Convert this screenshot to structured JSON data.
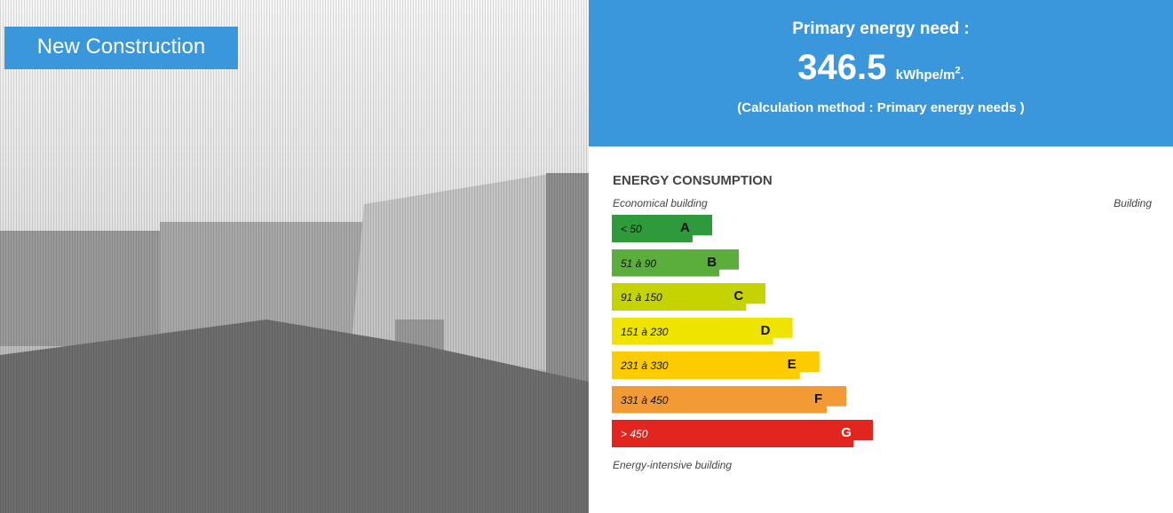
{
  "badge": "New Construction",
  "header": {
    "title": "Primary energy need :",
    "value": "346.5",
    "unit": "kWhpe/m",
    "unit_exponent": "2",
    "unit_end": ".",
    "method": "(Calculation method : Primary energy needs )"
  },
  "energy": {
    "title": "ENERGY CONSUMPTION",
    "top_left": "Economical building",
    "top_right": "Building",
    "bottom": "Energy-intensive building",
    "classes": [
      {
        "range": "< 50",
        "letter": "A",
        "color": "#2f9a3b"
      },
      {
        "range": "51 à 90",
        "letter": "B",
        "color": "#5bae3c"
      },
      {
        "range": "91 à 150",
        "letter": "C",
        "color": "#c5d300"
      },
      {
        "range": "151 à 230",
        "letter": "D",
        "color": "#efe400"
      },
      {
        "range": "231 à 330",
        "letter": "E",
        "color": "#fccb00"
      },
      {
        "range": "331 à 450",
        "letter": "F",
        "color": "#f29a36"
      },
      {
        "range": "> 450",
        "letter": "G",
        "color": "#e2261f"
      }
    ]
  }
}
